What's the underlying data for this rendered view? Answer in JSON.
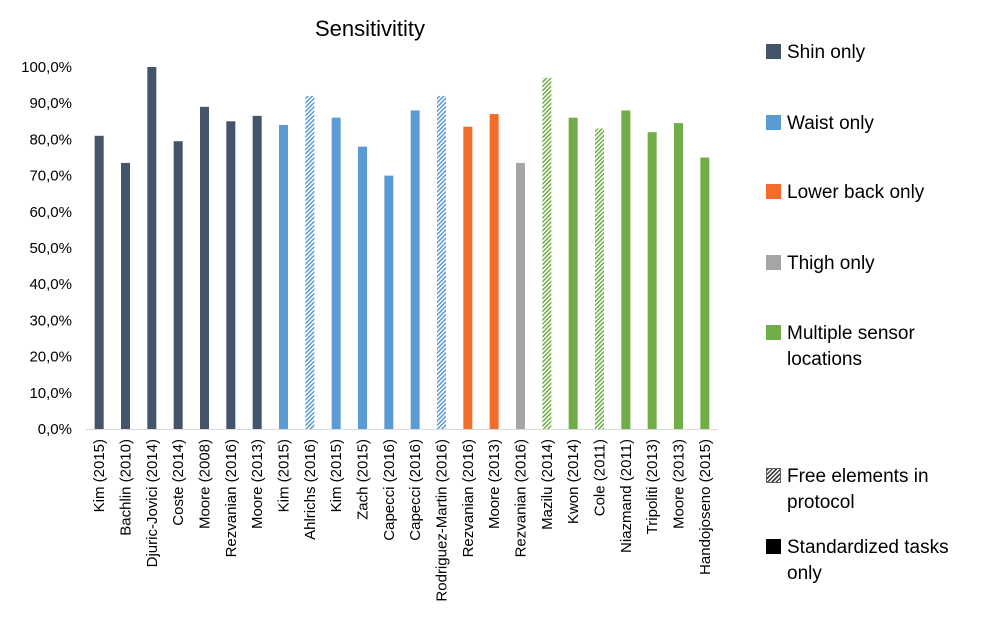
{
  "chart_data": {
    "type": "bar",
    "title": "Sensitivitity",
    "xlabel": "",
    "ylabel": "",
    "ylim": [
      0,
      100
    ],
    "y_ticks": [
      "0,0%",
      "10,0%",
      "20,0%",
      "30,0%",
      "40,0%",
      "50,0%",
      "60,0%",
      "70,0%",
      "80,0%",
      "90,0%",
      "100,0%"
    ],
    "grid": false,
    "legend_position": "right",
    "categories": [
      "Kim (2015)",
      "Bachlin (2010)",
      "Djuric-Jovici (2014)",
      "Coste (2014)",
      "Moore (2008)",
      "Rezvanian (2016)",
      "Moore (2013)",
      "Kim (2015)",
      "Ahlrichs (2016)",
      "Kim (2015)",
      "Zach (2015)",
      "Capecci (2016)",
      "Capecci (2016)",
      "Rodriguez-Martin (2016)",
      "Rezvanian (2016)",
      "Moore (2013)",
      "Rezvanian (2016)",
      "Mazilu (2014)",
      "Kwon (2014)",
      "Cole (2011)",
      "Niazmand (2011)",
      "Tripoliti (2013)",
      "Moore (2013)",
      "Handojoseno (2015)"
    ],
    "values": [
      81,
      73.5,
      100,
      79.5,
      89,
      85,
      86.5,
      84,
      92,
      86,
      78,
      70,
      88,
      92,
      83.5,
      87,
      73.5,
      97,
      86,
      83,
      88,
      82,
      84.5,
      75
    ],
    "groups": [
      "shin",
      "shin",
      "shin",
      "shin",
      "shin",
      "shin",
      "shin",
      "waist",
      "waist",
      "waist",
      "waist",
      "waist",
      "waist",
      "waist",
      "lowerback",
      "lowerback",
      "thigh",
      "multiple",
      "multiple",
      "multiple",
      "multiple",
      "multiple",
      "multiple",
      "multiple"
    ],
    "hatched": [
      false,
      false,
      false,
      false,
      false,
      false,
      false,
      false,
      true,
      false,
      false,
      false,
      false,
      true,
      false,
      false,
      false,
      true,
      false,
      true,
      false,
      false,
      false,
      false
    ],
    "group_colors": {
      "shin": "#44546A",
      "waist": "#5B9BD5",
      "lowerback": "#F26C2B",
      "thigh": "#A5A5A5",
      "multiple": "#70AD47"
    }
  },
  "legend": {
    "items": [
      {
        "key": "shin",
        "label": "Shin only",
        "color": "#44546A",
        "pattern": "solid"
      },
      {
        "key": "waist",
        "label": "Waist only",
        "color": "#5B9BD5",
        "pattern": "solid"
      },
      {
        "key": "lowerback",
        "label": "Lower back only",
        "color": "#F26C2B",
        "pattern": "solid"
      },
      {
        "key": "thigh",
        "label": "Thigh only",
        "color": "#A5A5A5",
        "pattern": "solid"
      },
      {
        "key": "multiple",
        "label": "Multiple sensor\nlocations",
        "color": "#70AD47",
        "pattern": "solid"
      },
      {
        "key": "free",
        "label": "Free elements in\nprotocol",
        "color": "#404040",
        "pattern": "hatched"
      },
      {
        "key": "std",
        "label": "Standardized tasks\nonly",
        "color": "#000000",
        "pattern": "solid"
      }
    ]
  }
}
